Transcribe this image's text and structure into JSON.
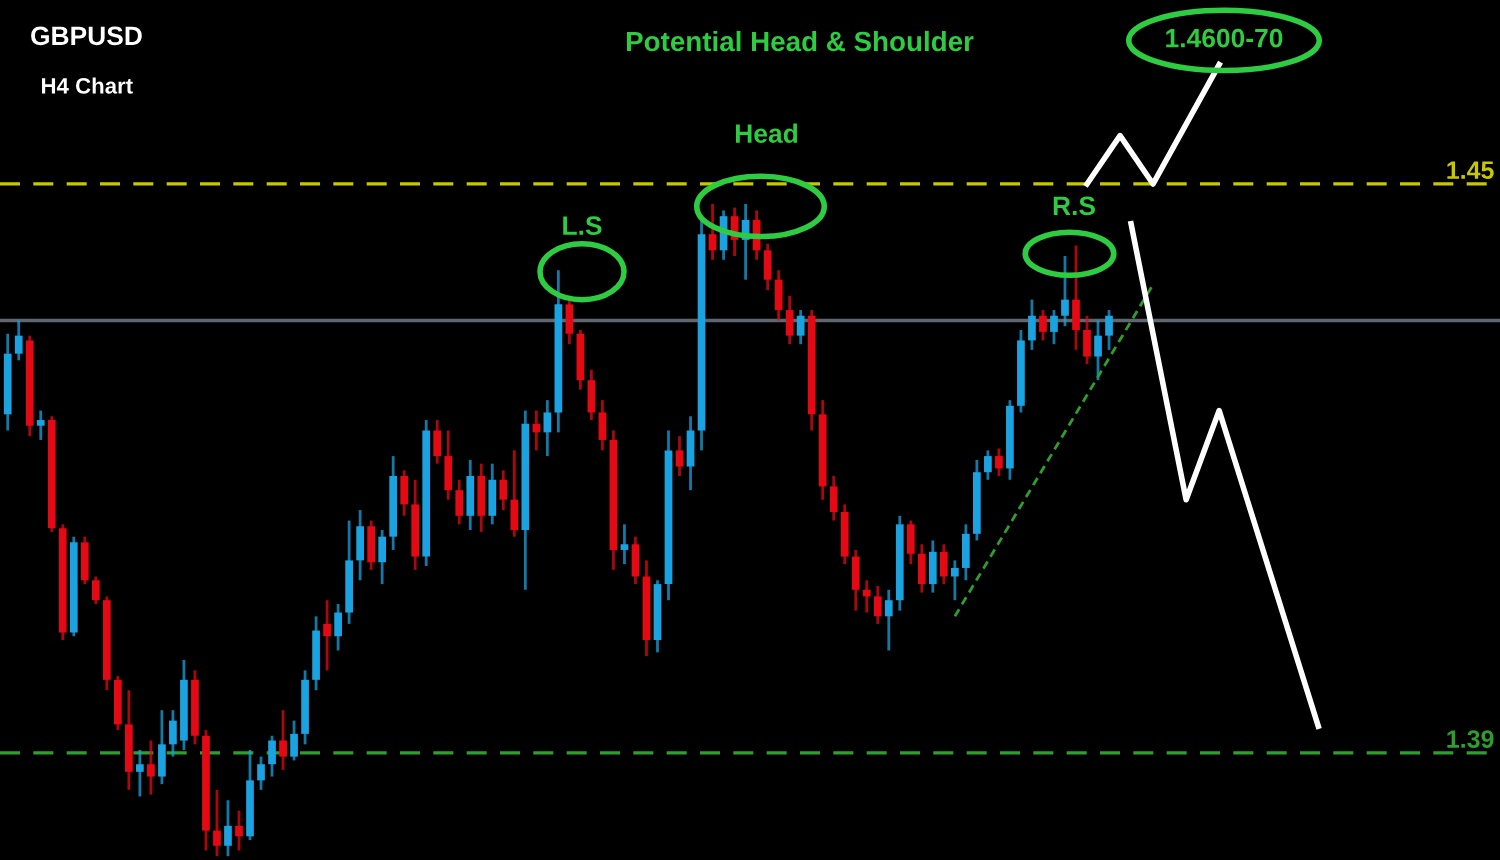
{
  "chart_data": {
    "type": "candlestick",
    "title": "GBPUSD",
    "subtitle": "H4 Chart",
    "annotations": [
      "Potential Head & Shoulder",
      "L.S",
      "Head",
      "R.S",
      "1.4600-70"
    ],
    "categories": [
      null,
      null,
      null,
      null,
      null,
      null,
      null,
      null,
      null,
      null,
      null,
      null,
      null,
      null,
      null,
      null,
      null,
      null,
      null,
      null,
      null,
      null,
      null,
      null,
      null,
      null,
      null,
      null,
      null,
      null,
      null,
      null,
      null,
      null,
      null,
      null,
      null,
      null,
      null,
      null,
      null,
      null,
      null,
      null,
      null,
      null,
      null,
      null,
      null,
      null,
      null,
      null,
      null,
      null,
      null,
      null,
      null,
      null,
      null,
      null,
      null,
      null,
      null,
      null,
      null,
      null,
      null,
      null,
      null,
      null,
      null,
      null,
      null,
      null,
      null,
      null,
      null,
      null,
      null,
      null,
      null,
      null,
      null,
      null,
      null,
      null,
      null,
      null,
      null,
      null,
      null,
      null,
      null,
      null,
      null,
      null,
      null,
      null,
      null,
      null,
      null,
      null,
      null,
      null,
      null,
      null,
      null,
      null,
      null,
      null,
      null,
      null,
      null,
      null,
      null,
      null,
      null,
      null,
      null,
      null,
      null,
      null,
      null,
      null,
      null,
      null,
      null,
      null,
      null,
      null,
      null,
      null,
      null,
      null,
      null,
      null
    ],
    "ylim": [
      1.3787,
      1.4694
    ],
    "yticks": [
      1.45,
      1.39
    ],
    "tick_labels": "y",
    "grid": false,
    "ref_lines": [
      {
        "axis": "y",
        "value": 1.4356,
        "label": null,
        "color": "#5f6670",
        "line_style": "solid"
      },
      {
        "axis": "y",
        "value": 1.45,
        "label": null,
        "color": "#c8c800",
        "line_style": "dashed"
      },
      {
        "axis": "y",
        "value": 1.39,
        "label": null,
        "color": "#2e9e2e",
        "line_style": "dashed"
      }
    ],
    "series": [
      {
        "ohlc": [
          [
            1.4257,
            1.4342,
            1.424,
            1.4321
          ],
          [
            1.4321,
            1.4356,
            1.4314,
            1.434
          ],
          [
            1.4335,
            1.434,
            1.4234,
            1.4245
          ],
          [
            1.4245,
            1.4261,
            1.423,
            1.4251
          ],
          [
            1.4251,
            1.4255,
            1.4133,
            1.4137
          ],
          [
            1.4137,
            1.4141,
            1.4019,
            1.4027
          ],
          [
            1.4027,
            1.4128,
            1.4023,
            1.4122
          ],
          [
            1.4122,
            1.4128,
            1.4078,
            1.4082
          ],
          [
            1.4082,
            1.4086,
            1.4057,
            1.4061
          ],
          [
            1.4061,
            1.4065,
            1.3966,
            1.3977
          ],
          [
            1.3977,
            1.3981,
            1.3924,
            1.393
          ],
          [
            1.393,
            1.3966,
            1.3861,
            1.388
          ],
          [
            1.388,
            1.3903,
            1.3854,
            1.3888
          ],
          [
            1.3888,
            1.3913,
            1.3856,
            1.3875
          ],
          [
            1.3875,
            1.3945,
            1.3867,
            1.3909
          ],
          [
            1.3909,
            1.3945,
            1.3896,
            1.3934
          ],
          [
            1.3913,
            1.3998,
            1.3903,
            1.3977
          ],
          [
            1.3977,
            1.3987,
            1.3909,
            1.3918
          ],
          [
            1.3918,
            1.3924,
            1.3797,
            1.3818
          ],
          [
            1.3818,
            1.3861,
            1.3791,
            1.3802
          ],
          [
            1.3802,
            1.385,
            1.3791,
            1.3823
          ],
          [
            1.3823,
            1.3839,
            1.3797,
            1.3812
          ],
          [
            1.3812,
            1.3903,
            1.3808,
            1.3871
          ],
          [
            1.3871,
            1.3896,
            1.3861,
            1.3888
          ],
          [
            1.3888,
            1.3918,
            1.3875,
            1.3913
          ],
          [
            1.3913,
            1.3945,
            1.3882,
            1.3896
          ],
          [
            1.3896,
            1.3934,
            1.3892,
            1.392
          ],
          [
            1.392,
            1.3987,
            1.3909,
            1.3977
          ],
          [
            1.3977,
            1.4044,
            1.3966,
            1.4029
          ],
          [
            1.4036,
            1.4061,
            1.3987,
            1.4023
          ],
          [
            1.4023,
            1.4057,
            1.4008,
            1.4048
          ],
          [
            1.4048,
            1.4145,
            1.4036,
            1.4103
          ],
          [
            1.4103,
            1.4156,
            1.4082,
            1.4139
          ],
          [
            1.4139,
            1.4145,
            1.4093,
            1.4101
          ],
          [
            1.4101,
            1.4135,
            1.4078,
            1.4128
          ],
          [
            1.4128,
            1.4213,
            1.4114,
            1.4192
          ],
          [
            1.4192,
            1.4198,
            1.415,
            1.4162
          ],
          [
            1.4162,
            1.4188,
            1.4093,
            1.4107
          ],
          [
            1.4107,
            1.4251,
            1.4097,
            1.424
          ],
          [
            1.424,
            1.4251,
            1.4205,
            1.4213
          ],
          [
            1.4213,
            1.424,
            1.4167,
            1.4177
          ],
          [
            1.4177,
            1.4188,
            1.4141,
            1.415
          ],
          [
            1.415,
            1.4209,
            1.4135,
            1.4192
          ],
          [
            1.4192,
            1.4205,
            1.4133,
            1.415
          ],
          [
            1.415,
            1.4205,
            1.4141,
            1.4188
          ],
          [
            1.4188,
            1.4198,
            1.4156,
            1.4167
          ],
          [
            1.4167,
            1.4219,
            1.4128,
            1.4135
          ],
          [
            1.4135,
            1.4261,
            1.4072,
            1.4247
          ],
          [
            1.4247,
            1.4261,
            1.4219,
            1.4238
          ],
          [
            1.4238,
            1.4272,
            1.4213,
            1.4259
          ],
          [
            1.4259,
            1.4409,
            1.4238,
            1.4373
          ],
          [
            1.4373,
            1.4382,
            1.4331,
            1.4342
          ],
          [
            1.4342,
            1.4346,
            1.4283,
            1.4293
          ],
          [
            1.4293,
            1.4304,
            1.4251,
            1.4259
          ],
          [
            1.4259,
            1.4272,
            1.4219,
            1.423
          ],
          [
            1.423,
            1.424,
            1.4093,
            1.4114
          ],
          [
            1.4114,
            1.4141,
            1.4099,
            1.412
          ],
          [
            1.412,
            1.4128,
            1.4078,
            1.4086
          ],
          [
            1.4086,
            1.4103,
            1.4002,
            1.4019
          ],
          [
            1.4019,
            1.4082,
            1.4006,
            1.4078
          ],
          [
            1.4078,
            1.424,
            1.4061,
            1.4219
          ],
          [
            1.4219,
            1.4234,
            1.4192,
            1.4202
          ],
          [
            1.4202,
            1.4255,
            1.4177,
            1.424
          ],
          [
            1.424,
            1.4462,
            1.4219,
            1.4447
          ],
          [
            1.4447,
            1.4479,
            1.442,
            1.443
          ],
          [
            1.443,
            1.4472,
            1.442,
            1.4466
          ],
          [
            1.4466,
            1.4475,
            1.4424,
            1.4441
          ],
          [
            1.4441,
            1.4479,
            1.4399,
            1.4462
          ],
          [
            1.4462,
            1.4472,
            1.442,
            1.443
          ],
          [
            1.443,
            1.4437,
            1.4388,
            1.4399
          ],
          [
            1.4399,
            1.4409,
            1.4356,
            1.4367
          ],
          [
            1.4367,
            1.4382,
            1.4331,
            1.434
          ],
          [
            1.434,
            1.4367,
            1.4331,
            1.4361
          ],
          [
            1.4361,
            1.4367,
            1.424,
            1.4257
          ],
          [
            1.4257,
            1.4272,
            1.4167,
            1.4181
          ],
          [
            1.4181,
            1.4192,
            1.4145,
            1.4154
          ],
          [
            1.4154,
            1.4162,
            1.4099,
            1.4107
          ],
          [
            1.4107,
            1.4114,
            1.405,
            1.4072
          ],
          [
            1.4072,
            1.4082,
            1.4048,
            1.4065
          ],
          [
            1.4065,
            1.4076,
            1.4036,
            1.4044
          ],
          [
            1.4044,
            1.4072,
            1.4008,
            1.4061
          ],
          [
            1.4061,
            1.415,
            1.405,
            1.4141
          ],
          [
            1.4141,
            1.4145,
            1.4099,
            1.411
          ],
          [
            1.411,
            1.412,
            1.4069,
            1.4078
          ],
          [
            1.4078,
            1.4124,
            1.4069,
            1.4112
          ],
          [
            1.4112,
            1.412,
            1.4078,
            1.4086
          ],
          [
            1.4086,
            1.4103,
            1.4061,
            1.4095
          ],
          [
            1.4095,
            1.4141,
            1.4082,
            1.4131
          ],
          [
            1.4131,
            1.4209,
            1.4124,
            1.4196
          ],
          [
            1.4196,
            1.4219,
            1.4188,
            1.4213
          ],
          [
            1.4213,
            1.4221,
            1.4192,
            1.42
          ],
          [
            1.42,
            1.4272,
            1.4188,
            1.4266
          ],
          [
            1.4266,
            1.4346,
            1.4259,
            1.4335
          ],
          [
            1.4335,
            1.4378,
            1.4325,
            1.4361
          ],
          [
            1.4361,
            1.4367,
            1.4335,
            1.4344
          ],
          [
            1.4344,
            1.4367,
            1.4331,
            1.4361
          ],
          [
            1.4361,
            1.4424,
            1.435,
            1.4378
          ],
          [
            1.4378,
            1.4435,
            1.4325,
            1.4346
          ],
          [
            1.4346,
            1.4361,
            1.431,
            1.4318
          ],
          [
            1.4318,
            1.4356,
            1.4293,
            1.434
          ],
          [
            1.434,
            1.4367,
            1.4325,
            1.4361
          ],
          null,
          null,
          null,
          null,
          null,
          null,
          null,
          null,
          null,
          null,
          null,
          null,
          null,
          null,
          null,
          null,
          null,
          null,
          null,
          null,
          null,
          null,
          null,
          null,
          null,
          null,
          null,
          null,
          null,
          null,
          null,
          null,
          null,
          null,
          null
        ],
        "colors": [
          "#1aa3e0",
          "#1aa3e0",
          "#e50914",
          "#1aa3e0",
          "#e50914",
          "#e50914",
          "#1aa3e0",
          "#e50914",
          "#e50914",
          "#e50914",
          "#e50914",
          "#e50914",
          "#1aa3e0",
          "#e50914",
          "#1aa3e0",
          "#1aa3e0",
          "#1aa3e0",
          "#e50914",
          "#e50914",
          "#e50914",
          "#1aa3e0",
          "#e50914",
          "#1aa3e0",
          "#1aa3e0",
          "#1aa3e0",
          "#e50914",
          "#1aa3e0",
          "#1aa3e0",
          "#1aa3e0",
          "#e50914",
          "#1aa3e0",
          "#1aa3e0",
          "#1aa3e0",
          "#e50914",
          "#1aa3e0",
          "#1aa3e0",
          "#e50914",
          "#e50914",
          "#1aa3e0",
          "#e50914",
          "#e50914",
          "#e50914",
          "#1aa3e0",
          "#e50914",
          "#1aa3e0",
          "#e50914",
          "#e50914",
          "#1aa3e0",
          "#e50914",
          "#1aa3e0",
          "#1aa3e0",
          "#e50914",
          "#e50914",
          "#e50914",
          "#e50914",
          "#e50914",
          "#1aa3e0",
          "#e50914",
          "#e50914",
          "#1aa3e0",
          "#1aa3e0",
          "#e50914",
          "#1aa3e0",
          "#1aa3e0",
          "#e50914",
          "#1aa3e0",
          "#e50914",
          "#1aa3e0",
          "#e50914",
          "#e50914",
          "#e50914",
          "#e50914",
          "#1aa3e0",
          "#e50914",
          "#e50914",
          "#e50914",
          "#e50914",
          "#e50914",
          "#e50914",
          "#e50914",
          "#1aa3e0",
          "#1aa3e0",
          "#e50914",
          "#e50914",
          "#1aa3e0",
          "#e50914",
          "#1aa3e0",
          "#1aa3e0",
          "#1aa3e0",
          "#1aa3e0",
          "#e50914",
          "#1aa3e0",
          "#1aa3e0",
          "#1aa3e0",
          "#e50914",
          "#1aa3e0",
          "#1aa3e0",
          "#e50914",
          "#e50914",
          "#1aa3e0",
          "#1aa3e0",
          null,
          null,
          null,
          null,
          null,
          null,
          null,
          null,
          null,
          null,
          null,
          null,
          null,
          null,
          null,
          null,
          null,
          null,
          null,
          null,
          null,
          null,
          null,
          null,
          null,
          null,
          null,
          null,
          null,
          null,
          null,
          null,
          null,
          null,
          null
        ]
      },
      {
        "type": "line",
        "color": "#2e9e2e",
        "line_style": "dashed",
        "values": [
          null,
          null,
          null,
          null,
          null,
          null,
          null,
          null,
          null,
          null,
          null,
          null,
          null,
          null,
          null,
          null,
          null,
          null,
          null,
          null,
          null,
          null,
          null,
          null,
          null,
          null,
          null,
          null,
          null,
          null,
          null,
          null,
          null,
          null,
          null,
          null,
          null,
          null,
          null,
          null,
          null,
          null,
          null,
          null,
          null,
          null,
          null,
          null,
          null,
          null,
          null,
          null,
          null,
          null,
          null,
          null,
          null,
          null,
          null,
          null,
          null,
          null,
          null,
          null,
          null,
          null,
          null,
          null,
          null,
          null,
          null,
          null,
          null,
          null,
          null,
          null,
          null,
          null,
          null,
          null,
          null,
          null,
          null,
          null,
          null,
          null,
          1.4044,
          null,
          null,
          null,
          null,
          null,
          null,
          null,
          null,
          null,
          null,
          null,
          null,
          null,
          null,
          null,
          null,
          null,
          1.4394,
          null,
          null,
          null,
          null,
          null,
          null,
          null,
          null,
          null,
          null,
          null,
          null,
          null,
          null,
          null,
          null,
          null,
          null,
          null,
          null,
          null,
          null,
          null,
          null,
          null,
          null,
          null,
          null,
          null,
          null,
          null
        ]
      },
      {
        "type": "line",
        "color": "#ffffff",
        "line_style": "solid",
        "values": [
          null,
          null,
          null,
          null,
          null,
          null,
          null,
          null,
          null,
          null,
          null,
          null,
          null,
          null,
          null,
          null,
          null,
          null,
          null,
          null,
          null,
          null,
          null,
          null,
          null,
          null,
          null,
          null,
          null,
          null,
          null,
          null,
          null,
          null,
          null,
          null,
          null,
          null,
          null,
          null,
          null,
          null,
          null,
          null,
          null,
          null,
          null,
          null,
          null,
          null,
          null,
          null,
          null,
          null,
          null,
          null,
          null,
          null,
          null,
          null,
          null,
          null,
          null,
          null,
          null,
          null,
          null,
          null,
          null,
          null,
          null,
          null,
          null,
          null,
          null,
          null,
          null,
          null,
          null,
          null,
          null,
          null,
          null,
          null,
          null,
          null,
          null,
          null,
          null,
          null,
          null,
          null,
          null,
          null,
          null,
          null,
          null,
          null,
          1.45,
          null,
          null,
          1.4551,
          null,
          null,
          1.45,
          null,
          null,
          null,
          null,
          null,
          1.4626,
          null,
          null,
          null,
          null,
          null,
          null,
          null,
          null,
          null,
          null,
          null,
          null,
          null,
          null,
          null,
          null,
          null,
          null,
          null,
          null,
          null,
          null,
          null,
          null,
          null
        ]
      },
      {
        "type": "line",
        "color": "#ffffff",
        "line_style": "solid",
        "values": [
          null,
          null,
          null,
          null,
          null,
          null,
          null,
          null,
          null,
          null,
          null,
          null,
          null,
          null,
          null,
          null,
          null,
          null,
          null,
          null,
          null,
          null,
          null,
          null,
          null,
          null,
          null,
          null,
          null,
          null,
          null,
          null,
          null,
          null,
          null,
          null,
          null,
          null,
          null,
          null,
          null,
          null,
          null,
          null,
          null,
          null,
          null,
          null,
          null,
          null,
          null,
          null,
          null,
          null,
          null,
          null,
          null,
          null,
          null,
          null,
          null,
          null,
          null,
          null,
          null,
          null,
          null,
          null,
          null,
          null,
          null,
          null,
          null,
          null,
          null,
          null,
          null,
          null,
          null,
          null,
          null,
          null,
          null,
          null,
          null,
          null,
          null,
          null,
          null,
          null,
          null,
          null,
          null,
          null,
          null,
          null,
          null,
          null,
          null,
          null,
          null,
          null,
          1.4458,
          null,
          null,
          null,
          null,
          1.4167,
          null,
          null,
          1.4261,
          null,
          null,
          null,
          null,
          null,
          null,
          null,
          null,
          1.3928,
          null,
          null,
          null,
          null,
          null,
          null,
          null,
          null,
          null,
          null,
          null,
          null,
          null,
          null,
          null,
          null
        ]
      }
    ]
  }
}
